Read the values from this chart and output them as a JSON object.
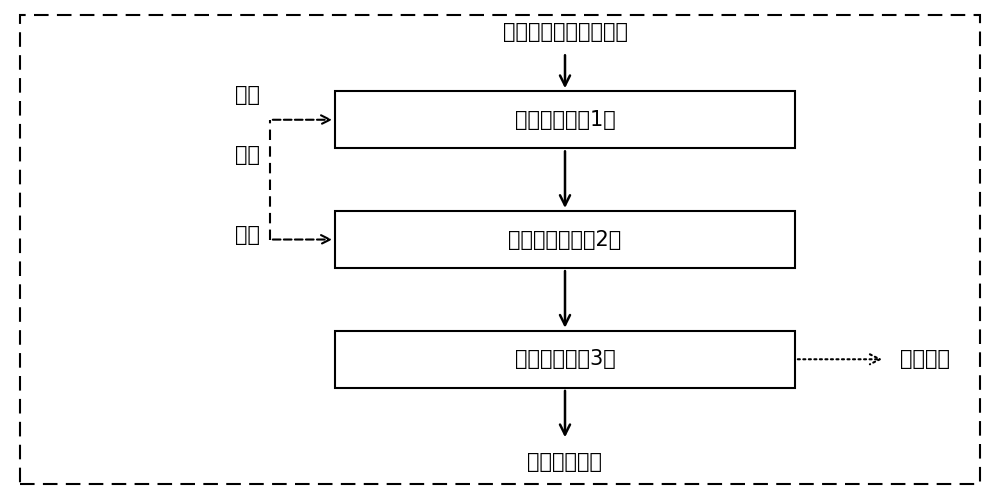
{
  "title_top": "经预处理的垃圾渗滤液",
  "title_bottom": "出水达标排放",
  "box1_label": "原水调节池（1）",
  "box2_label": "电絮凝反应器（2）",
  "box3_label": "磁电脱盐器（3）",
  "left_label_lines": [
    "反冲",
    "洗水",
    "回流"
  ],
  "right_label": "固体残渣",
  "outer_border_color": "#000000",
  "box_color": "#ffffff",
  "box_edge_color": "#000000",
  "arrow_color": "#000000",
  "text_color": "#000000",
  "background_color": "#ffffff",
  "font_size": 15,
  "figwidth": 10.0,
  "figheight": 4.99
}
